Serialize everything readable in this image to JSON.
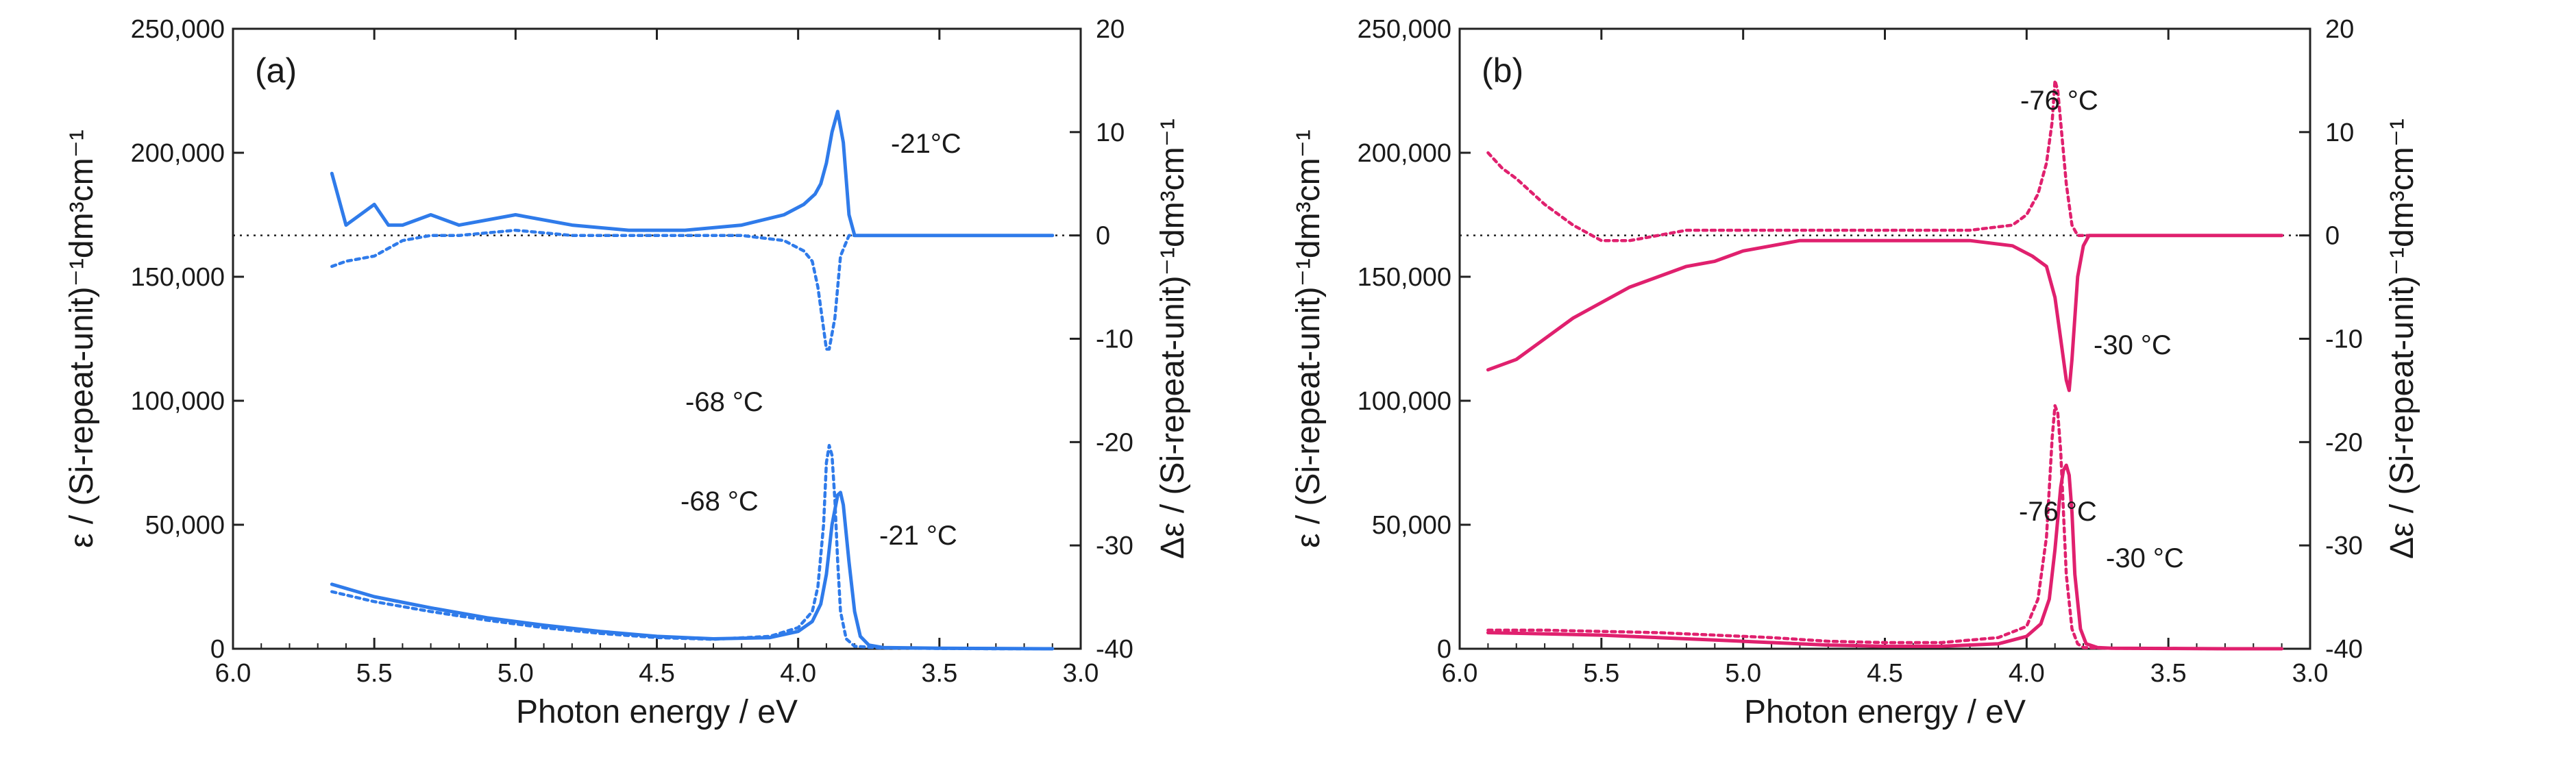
{
  "chart_data": [
    {
      "type": "line",
      "panel_label": "(a)",
      "color": "#2f7bea",
      "xlabel": "Photon energy / eV",
      "ylabel_left": "ε / (Si-repeat-unit)⁻¹dm³cm⁻¹",
      "ylabel_right": "Δε / (Si-repeat-unit)⁻¹dm³cm⁻¹",
      "xlim": [
        6.0,
        3.0
      ],
      "ylim_left": [
        0,
        250000
      ],
      "ylim_right": [
        -40,
        20
      ],
      "xticks": [
        "6.0",
        "5.5",
        "5.0",
        "4.5",
        "4.0",
        "3.5",
        "3.0"
      ],
      "yticks_left": [
        "0",
        "50,000",
        "100,000",
        "150,000",
        "200,000",
        "250,000"
      ],
      "yticks_right": [
        "-40",
        "-30",
        "-20",
        "-10",
        "0",
        "10",
        "20"
      ],
      "zero_line_right": 0,
      "series": [
        {
          "name": "Δε -21 °C",
          "axis": "right",
          "style": "solid",
          "x": [
            5.65,
            5.6,
            5.55,
            5.5,
            5.45,
            5.4,
            5.3,
            5.2,
            5.0,
            4.8,
            4.6,
            4.4,
            4.2,
            4.05,
            3.98,
            3.94,
            3.92,
            3.9,
            3.88,
            3.86,
            3.84,
            3.82,
            3.8,
            3.7,
            3.5,
            3.3,
            3.1
          ],
          "y": [
            6,
            1,
            2,
            3,
            1,
            1,
            2,
            1,
            2,
            1,
            0.5,
            0.5,
            1,
            2,
            3,
            4,
            5,
            7,
            10,
            12,
            9,
            2,
            0,
            0,
            0,
            0,
            0
          ]
        },
        {
          "name": "Δε -68 °C",
          "axis": "right",
          "style": "dashed",
          "x": [
            5.65,
            5.6,
            5.5,
            5.4,
            5.3,
            5.2,
            5.0,
            4.8,
            4.6,
            4.4,
            4.2,
            4.05,
            3.98,
            3.95,
            3.93,
            3.91,
            3.9,
            3.89,
            3.87,
            3.85,
            3.82,
            3.8,
            3.7,
            3.5,
            3.3,
            3.1
          ],
          "y": [
            -3,
            -2.5,
            -2,
            -0.5,
            0,
            0,
            0.5,
            0,
            0,
            0,
            0,
            -0.5,
            -1.5,
            -2.5,
            -5,
            -9,
            -11,
            -11,
            -8,
            -2,
            0,
            0,
            0,
            0,
            0,
            0
          ]
        },
        {
          "name": "ε -21 °C",
          "axis": "left",
          "style": "solid",
          "x": [
            5.65,
            5.5,
            5.3,
            5.1,
            4.9,
            4.7,
            4.5,
            4.3,
            4.1,
            4.0,
            3.95,
            3.92,
            3.9,
            3.88,
            3.86,
            3.85,
            3.84,
            3.82,
            3.8,
            3.78,
            3.75,
            3.7,
            3.5,
            3.3,
            3.1
          ],
          "y": [
            26000,
            21000,
            16500,
            12500,
            9500,
            7000,
            5000,
            4000,
            4500,
            7000,
            11000,
            18000,
            30000,
            50000,
            62000,
            63000,
            58000,
            35000,
            15000,
            5000,
            1500,
            500,
            200,
            100,
            0
          ]
        },
        {
          "name": "ε -68 °C",
          "axis": "left",
          "style": "dashed",
          "x": [
            5.65,
            5.5,
            5.3,
            5.1,
            4.9,
            4.7,
            4.5,
            4.3,
            4.1,
            4.0,
            3.95,
            3.93,
            3.91,
            3.9,
            3.89,
            3.88,
            3.87,
            3.86,
            3.85,
            3.83,
            3.8,
            3.7,
            3.5,
            3.3,
            3.1
          ],
          "y": [
            23000,
            19000,
            15000,
            11500,
            8500,
            6200,
            4500,
            3800,
            5000,
            8500,
            15000,
            25000,
            50000,
            75000,
            82000,
            78000,
            60000,
            35000,
            15000,
            4000,
            1000,
            300,
            100,
            0,
            0
          ]
        }
      ],
      "annotations": [
        "-21°C",
        "-68 °C",
        "-68 °C",
        "-21 °C"
      ]
    },
    {
      "type": "line",
      "panel_label": "(b)",
      "color": "#e0206e",
      "xlabel": "Photon energy / eV",
      "ylabel_left": "ε / (Si-repeat-unit)⁻¹dm³cm⁻¹",
      "ylabel_right": "Δε / (Si-repeat-unit)⁻¹dm³cm⁻¹",
      "xlim": [
        6.0,
        3.0
      ],
      "ylim_left": [
        0,
        250000
      ],
      "ylim_right": [
        -40,
        20
      ],
      "xticks": [
        "6.0",
        "5.5",
        "5.0",
        "4.5",
        "4.0",
        "3.5",
        "3.0"
      ],
      "yticks_left": [
        "0",
        "50,000",
        "100,000",
        "150,000",
        "200,000",
        "250,000"
      ],
      "yticks_right": [
        "-40",
        "-30",
        "-20",
        "-10",
        "0",
        "10",
        "20"
      ],
      "zero_line_right": 0,
      "series": [
        {
          "name": "Δε -76 °C",
          "axis": "right",
          "style": "dashed",
          "x": [
            5.9,
            5.85,
            5.8,
            5.7,
            5.6,
            5.5,
            5.4,
            5.3,
            5.2,
            5.0,
            4.8,
            4.6,
            4.4,
            4.2,
            4.05,
            4.0,
            3.96,
            3.93,
            3.91,
            3.9,
            3.89,
            3.88,
            3.86,
            3.84,
            3.82,
            3.8,
            3.7,
            3.5,
            3.3,
            3.1
          ],
          "y": [
            8,
            6.5,
            5.5,
            3,
            1,
            -0.5,
            -0.5,
            0,
            0.5,
            0.5,
            0.5,
            0.5,
            0.5,
            0.5,
            1,
            2,
            4,
            7,
            11,
            15,
            14,
            11,
            5,
            1,
            0,
            0,
            0,
            0,
            0,
            0
          ]
        },
        {
          "name": "Δε -30 °C",
          "axis": "right",
          "style": "solid",
          "x": [
            5.9,
            5.8,
            5.7,
            5.6,
            5.5,
            5.4,
            5.3,
            5.2,
            5.1,
            5.0,
            4.9,
            4.8,
            4.6,
            4.4,
            4.2,
            4.05,
            3.98,
            3.93,
            3.9,
            3.88,
            3.86,
            3.85,
            3.84,
            3.82,
            3.8,
            3.78,
            3.7,
            3.5,
            3.3,
            3.1
          ],
          "y": [
            -13,
            -12,
            -10,
            -8,
            -6.5,
            -5,
            -4,
            -3,
            -2.5,
            -1.5,
            -1,
            -0.5,
            -0.5,
            -0.5,
            -0.5,
            -1,
            -2,
            -3,
            -6,
            -10,
            -14,
            -15,
            -12,
            -4,
            -1,
            0,
            0,
            0,
            0,
            0
          ]
        },
        {
          "name": "ε -76 °C",
          "axis": "left",
          "style": "dashed",
          "x": [
            5.9,
            5.7,
            5.5,
            5.3,
            5.1,
            4.9,
            4.7,
            4.5,
            4.3,
            4.1,
            4.0,
            3.96,
            3.93,
            3.91,
            3.9,
            3.89,
            3.88,
            3.87,
            3.86,
            3.84,
            3.82,
            3.8,
            3.7,
            3.5,
            3.3,
            3.1
          ],
          "y": [
            7500,
            7500,
            7000,
            6500,
            5500,
            4500,
            3000,
            2500,
            2500,
            4500,
            9000,
            20000,
            45000,
            85000,
            98000,
            95000,
            80000,
            55000,
            30000,
            8000,
            2000,
            500,
            200,
            100,
            0,
            0
          ]
        },
        {
          "name": "ε -30 °C",
          "axis": "left",
          "style": "solid",
          "x": [
            5.9,
            5.7,
            5.5,
            5.3,
            5.1,
            4.9,
            4.7,
            4.5,
            4.3,
            4.1,
            4.0,
            3.95,
            3.92,
            3.9,
            3.88,
            3.87,
            3.86,
            3.85,
            3.84,
            3.83,
            3.81,
            3.79,
            3.75,
            3.7,
            3.5,
            3.3,
            3.1
          ],
          "y": [
            6500,
            6000,
            5500,
            4500,
            3500,
            2500,
            1500,
            1000,
            1000,
            2000,
            5000,
            10000,
            20000,
            40000,
            65000,
            72000,
            74000,
            70000,
            55000,
            30000,
            8000,
            2000,
            500,
            200,
            100,
            0,
            0
          ]
        }
      ],
      "annotations": [
        "-76 °C",
        "-30 °C",
        "-76 °C",
        "-30 °C"
      ]
    }
  ]
}
